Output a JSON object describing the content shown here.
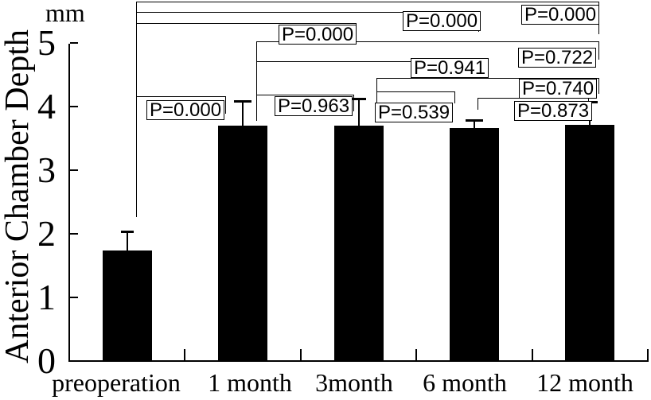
{
  "figure": {
    "unit_label": "mm",
    "y_axis_title": "Anterior Chamber Depth"
  },
  "chart_data": {
    "type": "bar",
    "title": "",
    "xlabel": "",
    "ylabel": "Anterior Chamber Depth",
    "y_unit": "mm",
    "categories": [
      "preoperation",
      "1 month",
      "3month",
      "6 month",
      "12 month"
    ],
    "values": [
      1.74,
      3.7,
      3.7,
      3.66,
      3.71
    ],
    "error_bar_tops": [
      2.05,
      4.1,
      4.14,
      3.8,
      4.09
    ],
    "ylim": [
      0,
      5
    ],
    "y_ticks": [
      5,
      4,
      3,
      2,
      1,
      0
    ],
    "grid": "off",
    "bar_color": "#000000",
    "p_comparisons": [
      {
        "pair": "preoperation vs 12 month",
        "p_label": "P=0.000"
      },
      {
        "pair": "preoperation vs 6 month",
        "p_label": "P=0.000"
      },
      {
        "pair": "preoperation vs 3 month",
        "p_label": "P=0.000"
      },
      {
        "pair": "1 month vs 12 month",
        "p_label": "P=0.722"
      },
      {
        "pair": "1 month vs 6 month",
        "p_label": "P=0.941"
      },
      {
        "pair": "3 month vs 12 month",
        "p_label": "P=0.740"
      },
      {
        "pair": "1 month vs 3 month",
        "p_label": "P=0.963"
      },
      {
        "pair": "3 month vs 6 month",
        "p_label": "P=0.539"
      },
      {
        "pair": "6 month vs 12 month",
        "p_label": "P=0.873"
      },
      {
        "pair": "preoperation vs 1 month",
        "p_label": "P=0.000"
      }
    ]
  }
}
